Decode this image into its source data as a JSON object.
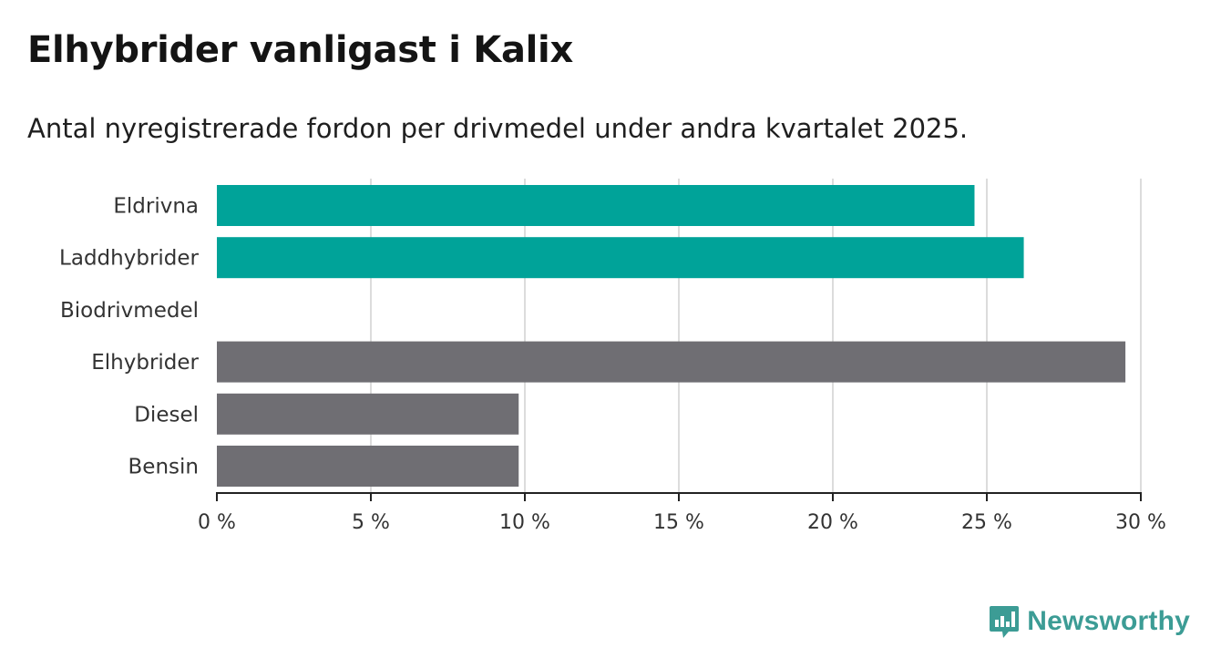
{
  "title": "Elhybrider vanligast i Kalix",
  "subtitle": "Antal nyregistrerade fordon per drivmedel under andra kvartalet 2025.",
  "brand": {
    "name": "Newsworthy",
    "icon": "newsworthy-logo-icon",
    "color": "#3c9c95"
  },
  "chart_data": {
    "type": "bar",
    "orientation": "horizontal",
    "categories": [
      "Eldrivna",
      "Laddhybrider",
      "Biodrivmedel",
      "Elhybrider",
      "Diesel",
      "Bensin"
    ],
    "values": [
      24.6,
      26.2,
      0,
      29.5,
      9.8,
      9.8
    ],
    "bar_colors": [
      "#00a399",
      "#00a399",
      "#00a399",
      "#6f6e73",
      "#6f6e73",
      "#6f6e73"
    ],
    "xlim": [
      0,
      30
    ],
    "xticks": [
      0,
      5,
      10,
      15,
      20,
      25,
      30
    ],
    "xtick_labels": [
      "0 %",
      "5 %",
      "10 %",
      "15 %",
      "20 %",
      "25 %",
      "30 %"
    ],
    "grid": true
  }
}
